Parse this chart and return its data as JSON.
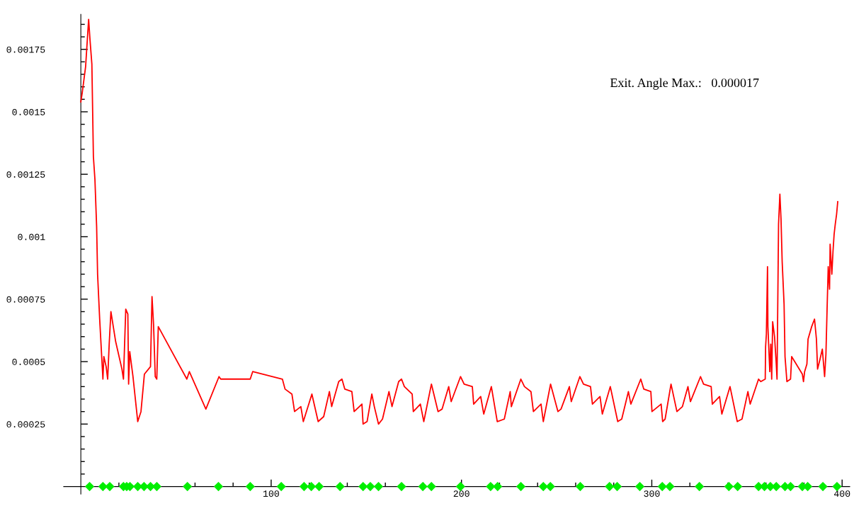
{
  "chart_data": {
    "type": "line",
    "annotations": [
      "Exit. Angle Max.:   0.000017"
    ],
    "series": [
      {
        "color": "#ff0000",
        "line_style": "solid",
        "marker": "none",
        "x": [
          0,
          0.8,
          2.5,
          4.1,
          4.8,
          5.8,
          6.6,
          7.4,
          8.3,
          8.8,
          9.9,
          11.6,
          12.1,
          13.3,
          14.1,
          14.9,
          15.8,
          18.3,
          21.6,
          22.4,
          23.6,
          24.7,
          25.1,
          25.7,
          27.4,
          29.9,
          31.6,
          33.4,
          36.6,
          37.4,
          38.2,
          39.1,
          39.9,
          40.7,
          55.7,
          57.0,
          65.7,
          72.6,
          73.5,
          89.0,
          90.3,
          105.9,
          107.3,
          110.9,
          112.3,
          115.6,
          116.9,
          121.4,
          124.7,
          127.6,
          130.6,
          131.8,
          135.5,
          137.2,
          138.7,
          142.4,
          143.6,
          147.7,
          148.3,
          150.4,
          152.9,
          154.2,
          156.4,
          158.5,
          161.9,
          163.5,
          167.0,
          168.5,
          170.0,
          174.1,
          174.7,
          178.4,
          180.2,
          184.2,
          187.7,
          189.8,
          193.3,
          194.6,
          199.5,
          201.4,
          205.7,
          206.4,
          210.1,
          211.7,
          215.7,
          218.8,
          222.5,
          225.6,
          226.2,
          231.2,
          233.1,
          236.5,
          237.8,
          241.8,
          243.0,
          246.8,
          250.7,
          252.3,
          256.7,
          257.7,
          262.2,
          264.1,
          267.8,
          268.8,
          272.8,
          274.0,
          278.2,
          282.1,
          284.2,
          287.7,
          289.0,
          294.2,
          295.8,
          299.5,
          300.1,
          304.9,
          305.7,
          307.0,
          310.1,
          313.2,
          316.1,
          319.0,
          320.3,
          325.6,
          327.2,
          331.2,
          331.8,
          335.6,
          336.8,
          341.1,
          344.9,
          347.4,
          350.5,
          351.7,
          356.1,
          357.3,
          359.6,
          359.8,
          360.2,
          360.8,
          361.0,
          362.0,
          362.5,
          363.0,
          363.5,
          364.5,
          365.4,
          365.8,
          366.6,
          367.3,
          367.9,
          368.5,
          369.5,
          370.0,
          371.0,
          372.9,
          373.5,
          379.1,
          379.7,
          380.3,
          381.5,
          382.1,
          384.0,
          385.5,
          386.5,
          387.1,
          388.4,
          389.6,
          390.8,
          391.5,
          392.1,
          392.7,
          393.4,
          393.7,
          394.6,
          395.2,
          395.8,
          396.4,
          397.1,
          397.7
        ],
        "values": [
          0.00154,
          0.00158,
          0.00168,
          0.00187,
          0.00179,
          0.00169,
          0.00132,
          0.00123,
          0.00104,
          0.00085,
          0.00067,
          0.00043,
          0.00052,
          0.00048,
          0.00043,
          0.00057,
          0.0007,
          0.00058,
          0.00047,
          0.00043,
          0.00071,
          0.00069,
          0.00041,
          0.00054,
          0.00044,
          0.00026,
          0.0003,
          0.00045,
          0.00048,
          0.00076,
          0.00065,
          0.00044,
          0.00043,
          0.00064,
          0.00043,
          0.00046,
          0.00031,
          0.00044,
          0.00043,
          0.00043,
          0.00046,
          0.00043,
          0.00039,
          0.00037,
          0.0003,
          0.00032,
          0.00026,
          0.00037,
          0.00026,
          0.00028,
          0.00038,
          0.00032,
          0.00042,
          0.00043,
          0.00039,
          0.00038,
          0.0003,
          0.00033,
          0.00025,
          0.00026,
          0.00037,
          0.00032,
          0.00025,
          0.00027,
          0.00038,
          0.00032,
          0.00042,
          0.00043,
          0.0004,
          0.00037,
          0.0003,
          0.00033,
          0.00026,
          0.00041,
          0.0003,
          0.00031,
          0.0004,
          0.00034,
          0.00044,
          0.00041,
          0.0004,
          0.00033,
          0.00036,
          0.00029,
          0.0004,
          0.00026,
          0.00027,
          0.00038,
          0.00032,
          0.00043,
          0.0004,
          0.00038,
          0.0003,
          0.00033,
          0.00026,
          0.00041,
          0.0003,
          0.00031,
          0.0004,
          0.00034,
          0.00044,
          0.00041,
          0.0004,
          0.00033,
          0.00036,
          0.00029,
          0.0004,
          0.00026,
          0.00027,
          0.00038,
          0.00033,
          0.00043,
          0.00039,
          0.00038,
          0.0003,
          0.00033,
          0.00026,
          0.00027,
          0.00041,
          0.0003,
          0.00032,
          0.0004,
          0.00034,
          0.00044,
          0.00041,
          0.0004,
          0.00033,
          0.00036,
          0.00029,
          0.0004,
          0.00026,
          0.00027,
          0.00038,
          0.00033,
          0.00043,
          0.00042,
          0.00043,
          0.00056,
          0.00061,
          0.00088,
          0.00064,
          0.00046,
          0.00057,
          0.00043,
          0.00066,
          0.0006,
          0.00049,
          0.00043,
          0.00105,
          0.00117,
          0.00107,
          0.0009,
          0.00073,
          0.00052,
          0.00042,
          0.00043,
          0.00052,
          0.00045,
          0.00042,
          0.00046,
          0.00049,
          0.00059,
          0.00064,
          0.00067,
          0.00059,
          0.00047,
          0.00051,
          0.00055,
          0.00044,
          0.00053,
          0.00071,
          0.00088,
          0.00079,
          0.00097,
          0.00085,
          0.00094,
          0.00101,
          0.00105,
          0.00109,
          0.00114
        ]
      },
      {
        "type": "scatter",
        "color": "#00ee00",
        "marker": "diamond",
        "x": [
          4.6,
          11.6,
          15.2,
          22.4,
          24.1,
          25.8,
          29.9,
          33.2,
          36.6,
          39.9,
          56.0,
          72.3,
          89.0,
          105.3,
          117.3,
          121.1,
          125.2,
          136.2,
          148.3,
          152.1,
          156.4,
          168.5,
          179.7,
          184.2,
          199.5,
          215.3,
          219.0,
          231.2,
          243.0,
          246.7,
          262.4,
          277.8,
          281.8,
          293.7,
          305.5,
          309.5,
          325.0,
          340.5,
          345.1,
          356.1,
          359.2,
          362.3,
          365.4,
          370.0,
          372.9,
          379.1,
          381.9,
          389.9,
          397.3
        ],
        "values": [
          0,
          0,
          0,
          0,
          0,
          0,
          0,
          0,
          0,
          0,
          0,
          0,
          0,
          0,
          0,
          0,
          0,
          0,
          0,
          0,
          0,
          0,
          0,
          0,
          0,
          0,
          0,
          0,
          0,
          0,
          0,
          0,
          0,
          0,
          0,
          0,
          0,
          0,
          0,
          0,
          0,
          0,
          0,
          0,
          0,
          0,
          0,
          0,
          0
        ]
      }
    ],
    "xlim": [
      -9,
      404
    ],
    "ylim": [
      -3e-05,
      0.00189
    ],
    "xticks": [
      {
        "value": 20,
        "label": null
      },
      {
        "value": 40,
        "label": null
      },
      {
        "value": 60,
        "label": null
      },
      {
        "value": 80,
        "label": null
      },
      100,
      {
        "value": 120,
        "label": null
      },
      {
        "value": 140,
        "label": null
      },
      {
        "value": 160,
        "label": null
      },
      {
        "value": 180,
        "label": null
      },
      200,
      {
        "value": 220,
        "label": null
      },
      {
        "value": 240,
        "label": null
      },
      {
        "value": 260,
        "label": null
      },
      {
        "value": 280,
        "label": null
      },
      300,
      {
        "value": 320,
        "label": null
      },
      {
        "value": 340,
        "label": null
      },
      {
        "value": 360,
        "label": null
      },
      {
        "value": 380,
        "label": null
      },
      400
    ],
    "yticks": [
      {
        "value": 5e-05,
        "label": null
      },
      {
        "value": 0.0001,
        "label": null
      },
      {
        "value": 0.00015,
        "label": null
      },
      {
        "value": 0.0002,
        "label": null
      },
      0.00025,
      {
        "value": 0.0003,
        "label": null
      },
      {
        "value": 0.00035,
        "label": null
      },
      {
        "value": 0.0004,
        "label": null
      },
      {
        "value": 0.00045,
        "label": null
      },
      0.0005,
      {
        "value": 0.00055,
        "label": null
      },
      {
        "value": 0.0006,
        "label": null
      },
      {
        "value": 0.00065,
        "label": null
      },
      {
        "value": 0.0007,
        "label": null
      },
      0.00075,
      {
        "value": 0.0008,
        "label": null
      },
      {
        "value": 0.00085,
        "label": null
      },
      {
        "value": 0.0009,
        "label": null
      },
      {
        "value": 0.00095,
        "label": null
      },
      0.001,
      {
        "value": 0.00105,
        "label": null
      },
      {
        "value": 0.0011,
        "label": null
      },
      {
        "value": 0.00115,
        "label": null
      },
      {
        "value": 0.0012,
        "label": null
      },
      0.00125,
      {
        "value": 0.0013,
        "label": null
      },
      {
        "value": 0.00135,
        "label": null
      },
      {
        "value": 0.0014,
        "label": null
      },
      {
        "value": 0.00145,
        "label": null
      },
      0.0015,
      {
        "value": 0.00155,
        "label": null
      },
      {
        "value": 0.0016,
        "label": null
      },
      {
        "value": 0.00165,
        "label": null
      },
      {
        "value": 0.0017,
        "label": null
      },
      0.00175,
      {
        "value": 0.0018,
        "label": null
      },
      {
        "value": 0.00185,
        "label": null
      }
    ],
    "grid": false,
    "legend": false
  }
}
